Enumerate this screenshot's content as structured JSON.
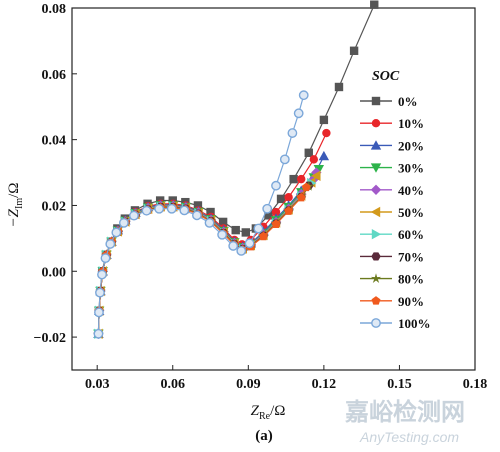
{
  "chart_data": {
    "type": "scatter",
    "xlabel_main": "Z",
    "xlabel_sub": "Re",
    "xlabel_unit": "/Ω",
    "ylabel_prefix": "−Z",
    "ylabel_sub": "Im",
    "ylabel_unit": "/Ω",
    "xlim": [
      0.02,
      0.18
    ],
    "ylim": [
      -0.03,
      0.08
    ],
    "xticks": [
      0.03,
      0.06,
      0.09,
      0.12,
      0.15,
      0.18
    ],
    "xtick_labels": [
      "0.03",
      "0.06",
      "0.09",
      "0.12",
      "0.15",
      "0.18"
    ],
    "yticks": [
      -0.02,
      0.0,
      0.02,
      0.04,
      0.06,
      0.08
    ],
    "ytick_labels": [
      "−0.02",
      "0.00",
      "0.02",
      "0.04",
      "0.06",
      "0.08"
    ],
    "legend_title": "SOC",
    "legend_position": "right",
    "panel_label": "(a)",
    "series": [
      {
        "name": "0%",
        "color": "#555555",
        "marker": "square",
        "points": [
          [
            0.0305,
            -0.019
          ],
          [
            0.0307,
            -0.012
          ],
          [
            0.0312,
            -0.006
          ],
          [
            0.032,
            0.0
          ],
          [
            0.0335,
            0.005
          ],
          [
            0.0355,
            0.009
          ],
          [
            0.038,
            0.013
          ],
          [
            0.041,
            0.016
          ],
          [
            0.045,
            0.0185
          ],
          [
            0.05,
            0.0205
          ],
          [
            0.055,
            0.0215
          ],
          [
            0.06,
            0.0215
          ],
          [
            0.065,
            0.021
          ],
          [
            0.07,
            0.02
          ],
          [
            0.075,
            0.018
          ],
          [
            0.08,
            0.015
          ],
          [
            0.085,
            0.0125
          ],
          [
            0.089,
            0.0118
          ],
          [
            0.093,
            0.013
          ],
          [
            0.098,
            0.017
          ],
          [
            0.103,
            0.022
          ],
          [
            0.108,
            0.028
          ],
          [
            0.114,
            0.036
          ],
          [
            0.12,
            0.046
          ],
          [
            0.126,
            0.056
          ],
          [
            0.132,
            0.067
          ],
          [
            0.14,
            0.081
          ]
        ]
      },
      {
        "name": "10%",
        "color": "#e8262a",
        "marker": "circle",
        "points": [
          [
            0.0305,
            -0.019
          ],
          [
            0.0308,
            -0.012
          ],
          [
            0.0313,
            -0.006
          ],
          [
            0.0322,
            0.0
          ],
          [
            0.0337,
            0.005
          ],
          [
            0.0357,
            0.009
          ],
          [
            0.0382,
            0.0125
          ],
          [
            0.0412,
            0.0155
          ],
          [
            0.0452,
            0.018
          ],
          [
            0.0502,
            0.0198
          ],
          [
            0.0552,
            0.0205
          ],
          [
            0.0602,
            0.0205
          ],
          [
            0.0652,
            0.02
          ],
          [
            0.0702,
            0.0185
          ],
          [
            0.0752,
            0.0165
          ],
          [
            0.0802,
            0.013
          ],
          [
            0.0845,
            0.0095
          ],
          [
            0.0875,
            0.0082
          ],
          [
            0.091,
            0.0095
          ],
          [
            0.096,
            0.0135
          ],
          [
            0.101,
            0.018
          ],
          [
            0.106,
            0.0225
          ],
          [
            0.111,
            0.028
          ],
          [
            0.116,
            0.034
          ],
          [
            0.121,
            0.042
          ]
        ]
      },
      {
        "name": "20%",
        "color": "#3a5ab8",
        "marker": "triangle-up",
        "points": [
          [
            0.0305,
            -0.019
          ],
          [
            0.0308,
            -0.012
          ],
          [
            0.0313,
            -0.006
          ],
          [
            0.0322,
            0.0
          ],
          [
            0.0337,
            0.005
          ],
          [
            0.0357,
            0.009
          ],
          [
            0.0382,
            0.0125
          ],
          [
            0.0412,
            0.0155
          ],
          [
            0.0452,
            0.0178
          ],
          [
            0.0502,
            0.0195
          ],
          [
            0.0552,
            0.0202
          ],
          [
            0.0602,
            0.0202
          ],
          [
            0.0652,
            0.0197
          ],
          [
            0.0702,
            0.0182
          ],
          [
            0.0752,
            0.016
          ],
          [
            0.0802,
            0.0125
          ],
          [
            0.0845,
            0.009
          ],
          [
            0.0878,
            0.0075
          ],
          [
            0.091,
            0.0085
          ],
          [
            0.096,
            0.012
          ],
          [
            0.101,
            0.016
          ],
          [
            0.106,
            0.02
          ],
          [
            0.111,
            0.0245
          ],
          [
            0.116,
            0.029
          ],
          [
            0.12,
            0.035
          ]
        ]
      },
      {
        "name": "30%",
        "color": "#2db34a",
        "marker": "triangle-down",
        "points": [
          [
            0.0305,
            -0.019
          ],
          [
            0.0308,
            -0.012
          ],
          [
            0.0313,
            -0.006
          ],
          [
            0.0322,
            0.0
          ],
          [
            0.0337,
            0.005
          ],
          [
            0.0357,
            0.009
          ],
          [
            0.0382,
            0.0123
          ],
          [
            0.0412,
            0.0153
          ],
          [
            0.0452,
            0.0176
          ],
          [
            0.0502,
            0.0193
          ],
          [
            0.0552,
            0.02
          ],
          [
            0.0602,
            0.02
          ],
          [
            0.0652,
            0.0195
          ],
          [
            0.0702,
            0.018
          ],
          [
            0.0752,
            0.0158
          ],
          [
            0.0802,
            0.0122
          ],
          [
            0.0845,
            0.0088
          ],
          [
            0.0878,
            0.0073
          ],
          [
            0.091,
            0.0083
          ],
          [
            0.096,
            0.0115
          ],
          [
            0.101,
            0.0155
          ],
          [
            0.106,
            0.0195
          ],
          [
            0.111,
            0.024
          ],
          [
            0.116,
            0.0285
          ],
          [
            0.118,
            0.031
          ]
        ]
      },
      {
        "name": "40%",
        "color": "#a259c9",
        "marker": "diamond",
        "points": [
          [
            0.0305,
            -0.019
          ],
          [
            0.0308,
            -0.012
          ],
          [
            0.0313,
            -0.006
          ],
          [
            0.0322,
            0.0
          ],
          [
            0.0337,
            0.005
          ],
          [
            0.0357,
            0.009
          ],
          [
            0.0382,
            0.0122
          ],
          [
            0.0412,
            0.0152
          ],
          [
            0.0452,
            0.0175
          ],
          [
            0.0502,
            0.0192
          ],
          [
            0.0552,
            0.0199
          ],
          [
            0.0602,
            0.0199
          ],
          [
            0.0652,
            0.0194
          ],
          [
            0.0702,
            0.0179
          ],
          [
            0.0752,
            0.0156
          ],
          [
            0.0802,
            0.012
          ],
          [
            0.0845,
            0.0086
          ],
          [
            0.0878,
            0.0071
          ],
          [
            0.091,
            0.0081
          ],
          [
            0.096,
            0.0113
          ],
          [
            0.101,
            0.015
          ],
          [
            0.106,
            0.019
          ],
          [
            0.111,
            0.0235
          ],
          [
            0.116,
            0.028
          ],
          [
            0.117,
            0.03
          ]
        ]
      },
      {
        "name": "50%",
        "color": "#d39a1c",
        "marker": "triangle-left",
        "points": [
          [
            0.0305,
            -0.019
          ],
          [
            0.0308,
            -0.012
          ],
          [
            0.0313,
            -0.006
          ],
          [
            0.0322,
            0.0
          ],
          [
            0.0337,
            0.005
          ],
          [
            0.0357,
            0.009
          ],
          [
            0.0382,
            0.0121
          ],
          [
            0.0412,
            0.0151
          ],
          [
            0.0452,
            0.0174
          ],
          [
            0.0502,
            0.019
          ],
          [
            0.0552,
            0.0197
          ],
          [
            0.0602,
            0.0197
          ],
          [
            0.0652,
            0.0192
          ],
          [
            0.0702,
            0.0177
          ],
          [
            0.0752,
            0.0154
          ],
          [
            0.0802,
            0.0118
          ],
          [
            0.0845,
            0.0084
          ],
          [
            0.0878,
            0.0069
          ],
          [
            0.091,
            0.0079
          ],
          [
            0.096,
            0.011
          ],
          [
            0.101,
            0.0148
          ],
          [
            0.106,
            0.0188
          ],
          [
            0.111,
            0.023
          ],
          [
            0.115,
            0.027
          ],
          [
            0.117,
            0.029
          ]
        ]
      },
      {
        "name": "60%",
        "color": "#5fd8c4",
        "marker": "triangle-right",
        "points": [
          [
            0.0305,
            -0.019
          ],
          [
            0.0308,
            -0.012
          ],
          [
            0.0313,
            -0.006
          ],
          [
            0.0322,
            0.0
          ],
          [
            0.0337,
            0.005
          ],
          [
            0.0357,
            0.009
          ],
          [
            0.0382,
            0.012
          ],
          [
            0.0412,
            0.015
          ],
          [
            0.0452,
            0.0173
          ],
          [
            0.0502,
            0.0189
          ],
          [
            0.0552,
            0.0196
          ],
          [
            0.0602,
            0.0196
          ],
          [
            0.0652,
            0.0191
          ],
          [
            0.0702,
            0.0176
          ],
          [
            0.0752,
            0.0153
          ],
          [
            0.0802,
            0.0117
          ],
          [
            0.0845,
            0.0083
          ],
          [
            0.0878,
            0.0068
          ],
          [
            0.091,
            0.0078
          ],
          [
            0.096,
            0.0109
          ],
          [
            0.101,
            0.0146
          ],
          [
            0.106,
            0.0186
          ],
          [
            0.111,
            0.0228
          ],
          [
            0.115,
            0.0268
          ]
        ]
      },
      {
        "name": "70%",
        "color": "#5a2a3a",
        "marker": "hexagon",
        "points": [
          [
            0.0305,
            -0.019
          ],
          [
            0.0308,
            -0.012
          ],
          [
            0.0313,
            -0.006
          ],
          [
            0.0322,
            0.0
          ],
          [
            0.0337,
            0.005
          ],
          [
            0.0357,
            0.009
          ],
          [
            0.0382,
            0.012
          ],
          [
            0.0412,
            0.015
          ],
          [
            0.0452,
            0.0172
          ],
          [
            0.0502,
            0.0188
          ],
          [
            0.0552,
            0.0195
          ],
          [
            0.0602,
            0.0195
          ],
          [
            0.0652,
            0.019
          ],
          [
            0.0702,
            0.0175
          ],
          [
            0.0752,
            0.0152
          ],
          [
            0.0802,
            0.0116
          ],
          [
            0.0845,
            0.0082
          ],
          [
            0.0878,
            0.0067
          ],
          [
            0.091,
            0.0077
          ],
          [
            0.096,
            0.0108
          ],
          [
            0.101,
            0.0145
          ],
          [
            0.106,
            0.0185
          ],
          [
            0.111,
            0.0226
          ],
          [
            0.114,
            0.026
          ]
        ]
      },
      {
        "name": "80%",
        "color": "#6b7a1e",
        "marker": "star",
        "points": [
          [
            0.0305,
            -0.019
          ],
          [
            0.0308,
            -0.012
          ],
          [
            0.0313,
            -0.006
          ],
          [
            0.0322,
            0.0
          ],
          [
            0.0337,
            0.005
          ],
          [
            0.0357,
            0.009
          ],
          [
            0.0382,
            0.012
          ],
          [
            0.0412,
            0.015
          ],
          [
            0.0452,
            0.0172
          ],
          [
            0.0502,
            0.0187
          ],
          [
            0.0552,
            0.0194
          ],
          [
            0.0602,
            0.0194
          ],
          [
            0.0652,
            0.0189
          ],
          [
            0.0702,
            0.0174
          ],
          [
            0.0752,
            0.0151
          ],
          [
            0.0802,
            0.0115
          ],
          [
            0.0845,
            0.0081
          ],
          [
            0.0878,
            0.0066
          ],
          [
            0.091,
            0.0076
          ],
          [
            0.096,
            0.0107
          ],
          [
            0.101,
            0.0144
          ],
          [
            0.106,
            0.0184
          ],
          [
            0.111,
            0.0225
          ],
          [
            0.114,
            0.0258
          ]
        ]
      },
      {
        "name": "90%",
        "color": "#f05a1e",
        "marker": "pentagon",
        "points": [
          [
            0.0305,
            -0.019
          ],
          [
            0.0308,
            -0.012
          ],
          [
            0.0313,
            -0.006
          ],
          [
            0.0322,
            0.0
          ],
          [
            0.0337,
            0.005
          ],
          [
            0.0357,
            0.009
          ],
          [
            0.0382,
            0.012
          ],
          [
            0.0412,
            0.0149
          ],
          [
            0.0452,
            0.0171
          ],
          [
            0.0502,
            0.0186
          ],
          [
            0.0552,
            0.0193
          ],
          [
            0.0602,
            0.0193
          ],
          [
            0.0652,
            0.0188
          ],
          [
            0.0702,
            0.0173
          ],
          [
            0.0752,
            0.015
          ],
          [
            0.0802,
            0.0114
          ],
          [
            0.0845,
            0.008
          ],
          [
            0.0878,
            0.0065
          ],
          [
            0.091,
            0.0075
          ],
          [
            0.096,
            0.0106
          ],
          [
            0.101,
            0.0143
          ],
          [
            0.106,
            0.0183
          ],
          [
            0.111,
            0.0224
          ],
          [
            0.113,
            0.0255
          ]
        ]
      },
      {
        "name": "100%",
        "color": "#7ba7d9",
        "marker": "circle-open",
        "points": [
          [
            0.0305,
            -0.019
          ],
          [
            0.0307,
            -0.0125
          ],
          [
            0.0311,
            -0.0065
          ],
          [
            0.0319,
            -0.001
          ],
          [
            0.0333,
            0.004
          ],
          [
            0.0352,
            0.0083
          ],
          [
            0.0376,
            0.0118
          ],
          [
            0.0406,
            0.0147
          ],
          [
            0.0446,
            0.0169
          ],
          [
            0.0496,
            0.0184
          ],
          [
            0.0546,
            0.019
          ],
          [
            0.0596,
            0.019
          ],
          [
            0.0646,
            0.0185
          ],
          [
            0.0696,
            0.017
          ],
          [
            0.0746,
            0.0147
          ],
          [
            0.0796,
            0.0111
          ],
          [
            0.084,
            0.0077
          ],
          [
            0.0872,
            0.0062
          ],
          [
            0.0905,
            0.0085
          ],
          [
            0.094,
            0.013
          ],
          [
            0.0975,
            0.019
          ],
          [
            0.101,
            0.026
          ],
          [
            0.1045,
            0.034
          ],
          [
            0.1075,
            0.042
          ],
          [
            0.11,
            0.048
          ],
          [
            0.112,
            0.0535
          ]
        ]
      }
    ]
  },
  "watermark": {
    "cn": "嘉峪检测网",
    "en": "AnyTesting.com"
  }
}
